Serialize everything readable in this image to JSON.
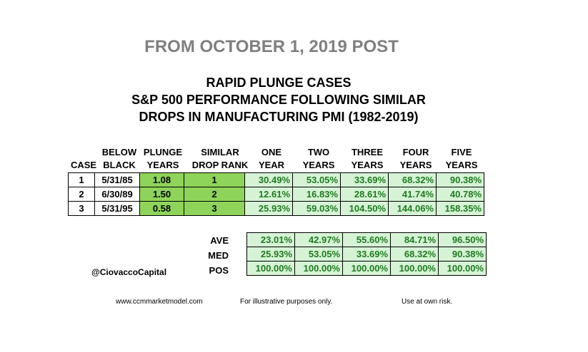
{
  "header": {
    "post_title": "FROM OCTOBER 1, 2019 POST",
    "line1": "RAPID PLUNGE CASES",
    "line2": "S&P 500 PERFORMANCE FOLLOWING SIMILAR",
    "line3": "DROPS IN MANUFACTURING PMI (1982-2019)"
  },
  "columns": {
    "below": "BELOW",
    "plunge": "PLUNGE",
    "similar": "SIMILAR",
    "one": "ONE",
    "two": "TWO",
    "three": "THREE",
    "four": "FOUR",
    "five": "FIVE",
    "case": "CASE",
    "black": "BLACK",
    "years": "YEARS",
    "drop_rank": "DROP RANK",
    "year": "YEAR"
  },
  "rows": [
    {
      "case": "1",
      "date": "5/31/85",
      "plunge": "1.08",
      "rank": "1",
      "y1": "30.49%",
      "y2": "53.05%",
      "y3": "33.69%",
      "y4": "68.32%",
      "y5": "90.38%"
    },
    {
      "case": "2",
      "date": "6/30/89",
      "plunge": "1.50",
      "rank": "2",
      "y1": "12.61%",
      "y2": "16.83%",
      "y3": "28.61%",
      "y4": "41.74%",
      "y5": "40.78%"
    },
    {
      "case": "3",
      "date": "5/31/95",
      "plunge": "0.58",
      "rank": "3",
      "y1": "25.93%",
      "y2": "59.03%",
      "y3": "104.50%",
      "y4": "144.06%",
      "y5": "158.35%"
    }
  ],
  "stats": [
    {
      "label": "AVE",
      "y1": "23.01%",
      "y2": "42.97%",
      "y3": "55.60%",
      "y4": "84.71%",
      "y5": "96.50%"
    },
    {
      "label": "MED",
      "y1": "25.93%",
      "y2": "53.05%",
      "y3": "33.69%",
      "y4": "68.32%",
      "y5": "90.38%"
    },
    {
      "label": "POS",
      "y1": "100.00%",
      "y2": "100.00%",
      "y3": "100.00%",
      "y4": "100.00%",
      "y5": "100.00%"
    }
  ],
  "handle": "@CiovaccoCapital",
  "footer": {
    "website": "www.ccmmarketmodel.com",
    "disclaimer": "For illustrative purposes only.",
    "risk": "Use at own risk."
  },
  "colors": {
    "plunge_fill": "#8fd45a",
    "value_fill": "#d6f3d6",
    "value_text": "#1e7b1e",
    "title_gray": "#7f7f7f"
  }
}
